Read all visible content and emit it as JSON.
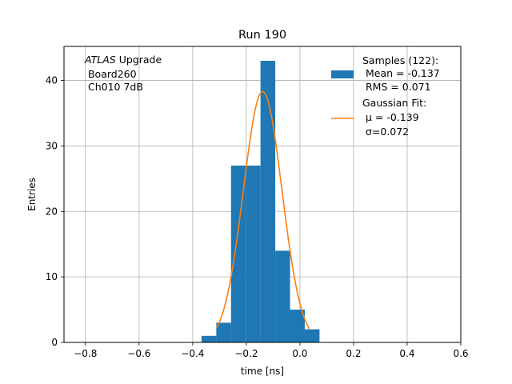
{
  "chart_data": {
    "type": "bar",
    "title": "Run 190",
    "xlabel": "time [ns]",
    "ylabel": "Entries",
    "xlim": [
      -0.88,
      0.6
    ],
    "ylim": [
      0,
      45.2
    ],
    "grid": true,
    "xticks": [
      -0.8,
      -0.6,
      -0.4,
      -0.2,
      0.0,
      0.2,
      0.4,
      0.6
    ],
    "xtick_labels": [
      "−0.8",
      "−0.6",
      "−0.4",
      "−0.2",
      "0.0",
      "0.2",
      "0.4",
      "0.6"
    ],
    "yticks": [
      0,
      10,
      20,
      30,
      40
    ],
    "ytick_labels": [
      "0",
      "10",
      "20",
      "30",
      "40"
    ],
    "histogram": {
      "name": "Samples (122):",
      "color": "#1f77b4",
      "bin_edges": [
        -0.367,
        -0.312,
        -0.257,
        -0.202,
        -0.147,
        -0.092,
        -0.037,
        0.018,
        0.073
      ],
      "counts": [
        1,
        3,
        27,
        27,
        43,
        14,
        5,
        2
      ]
    },
    "fit": {
      "name": "Gaussian Fit:",
      "color": "#ff7f0e",
      "mu": -0.139,
      "sigma": 0.072,
      "amplitude": 38.3,
      "x_range": [
        -0.31,
        0.035
      ]
    },
    "legend": {
      "position": "upper right",
      "hist_lines": [
        "Samples (122):",
        " Mean = -0.137",
        " RMS = 0.071"
      ],
      "fit_lines": [
        "Gaussian Fit:",
        " μ = -0.139",
        " σ=0.072"
      ]
    },
    "annotation": {
      "italic": "ATLAS",
      "rest": " Upgrade",
      "lines": [
        " Board260",
        " Ch010 7dB"
      ]
    }
  }
}
